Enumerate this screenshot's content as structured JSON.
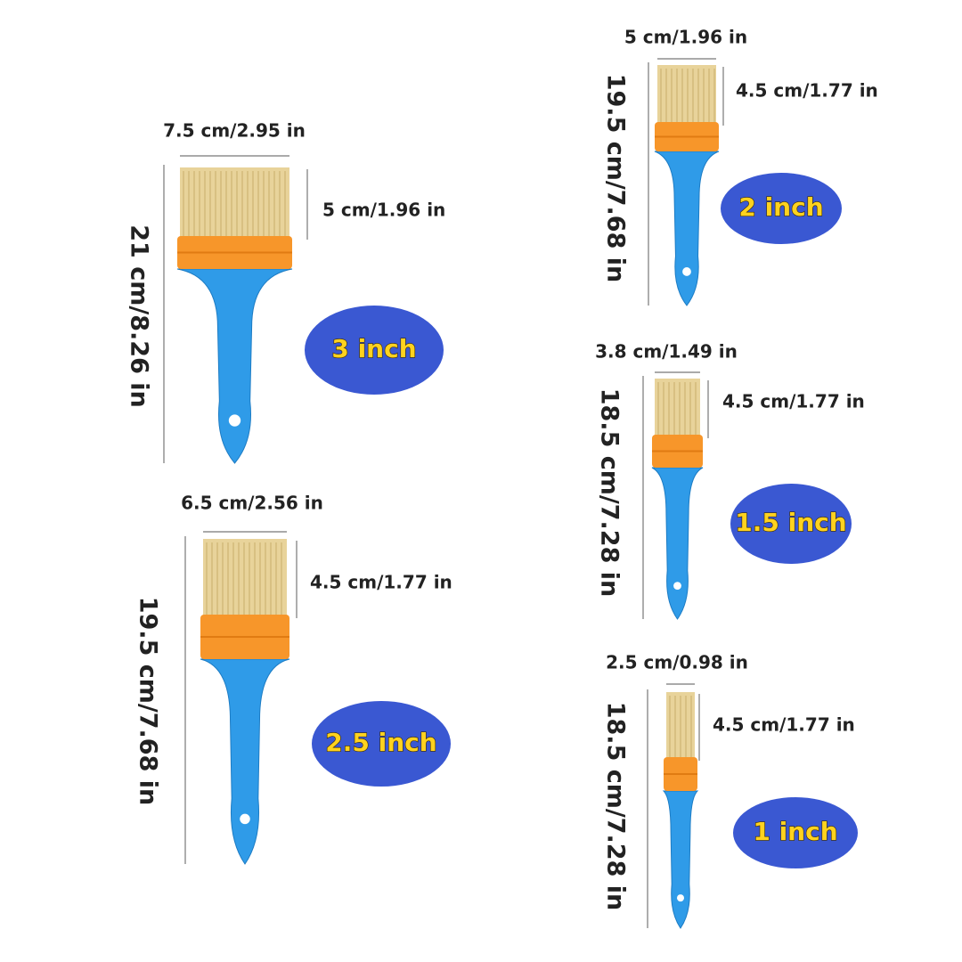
{
  "brushes": [
    {
      "size": "3 inch",
      "width": "7.5 cm/2.95 in",
      "bristle_length": "5 cm/1.96 in",
      "total_length": "21 cm/8.26 in"
    },
    {
      "size": "2.5 inch",
      "width": "6.5 cm/2.56 in",
      "bristle_length": "4.5 cm/1.77 in",
      "total_length": "19.5 cm/7.68 in"
    },
    {
      "size": "2 inch",
      "width": "5 cm/1.96 in",
      "bristle_length": "4.5 cm/1.77 in",
      "total_length": "19.5 cm/7.68 in"
    },
    {
      "size": "1.5 inch",
      "width": "3.8 cm/1.49 in",
      "bristle_length": "4.5 cm/1.77 in",
      "total_length": "18.5 cm/7.28 in"
    },
    {
      "size": "1 inch",
      "width": "2.5 cm/0.98 in",
      "bristle_length": "4.5 cm/1.77 in",
      "total_length": "18.5 cm/7.28 in"
    }
  ]
}
